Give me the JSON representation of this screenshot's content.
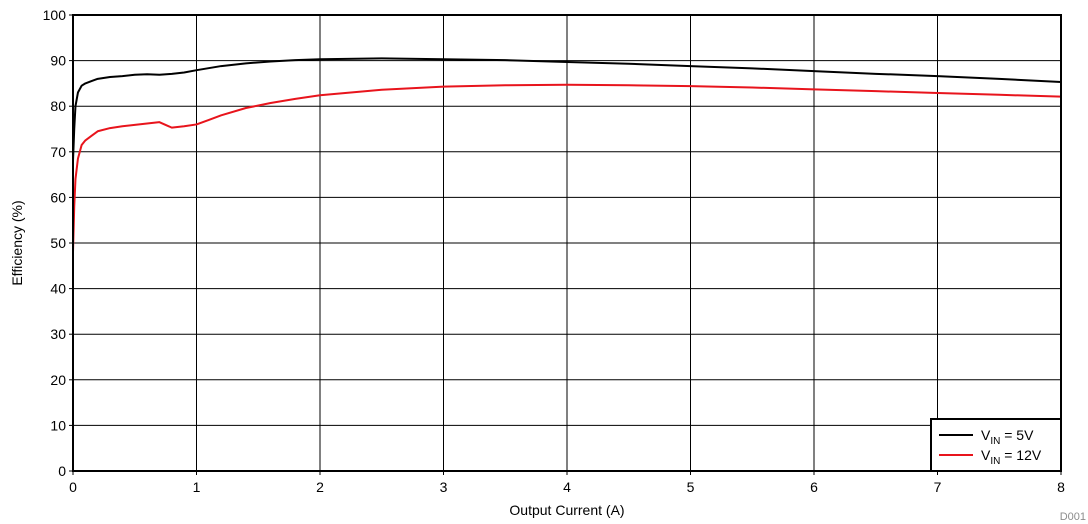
{
  "chart_data": {
    "type": "line",
    "xlabel": "Output Current (A)",
    "ylabel": "Efficiency (%)",
    "xlim": [
      0,
      8
    ],
    "ylim": [
      0,
      100
    ],
    "xticks": [
      "0",
      "1",
      "2",
      "3",
      "4",
      "5",
      "6",
      "7",
      "8"
    ],
    "yticks": [
      "0",
      "10",
      "20",
      "30",
      "40",
      "50",
      "60",
      "70",
      "80",
      "90",
      "100"
    ],
    "grid": true,
    "legend_position": "bottom-right",
    "footnote": "D001",
    "series": [
      {
        "name_main": "V",
        "name_sub": "IN",
        "name_rest": " = 5V",
        "color": "#000000",
        "points": [
          [
            0,
            68
          ],
          [
            0.01,
            75
          ],
          [
            0.02,
            80
          ],
          [
            0.04,
            83
          ],
          [
            0.07,
            84.5
          ],
          [
            0.1,
            85
          ],
          [
            0.15,
            85.5
          ],
          [
            0.2,
            86
          ],
          [
            0.3,
            86.4
          ],
          [
            0.4,
            86.6
          ],
          [
            0.5,
            86.9
          ],
          [
            0.6,
            87
          ],
          [
            0.7,
            86.9
          ],
          [
            0.8,
            87.1
          ],
          [
            0.9,
            87.4
          ],
          [
            1.0,
            87.9
          ],
          [
            1.2,
            88.8
          ],
          [
            1.4,
            89.4
          ],
          [
            1.6,
            89.8
          ],
          [
            1.8,
            90.1
          ],
          [
            2.0,
            90.3
          ],
          [
            2.5,
            90.5
          ],
          [
            3.0,
            90.3
          ],
          [
            3.5,
            90.1
          ],
          [
            4.0,
            89.7
          ],
          [
            4.5,
            89.3
          ],
          [
            5.0,
            88.8
          ],
          [
            5.5,
            88.3
          ],
          [
            6.0,
            87.7
          ],
          [
            6.5,
            87.1
          ],
          [
            7.0,
            86.6
          ],
          [
            7.5,
            86
          ],
          [
            8.0,
            85.3
          ]
        ]
      },
      {
        "name_main": "V",
        "name_sub": "IN",
        "name_rest": " = 12V",
        "color": "#e8141c",
        "points": [
          [
            0,
            48
          ],
          [
            0.01,
            58
          ],
          [
            0.02,
            64
          ],
          [
            0.04,
            68.5
          ],
          [
            0.07,
            71.5
          ],
          [
            0.1,
            72.5
          ],
          [
            0.15,
            73.5
          ],
          [
            0.2,
            74.5
          ],
          [
            0.3,
            75.2
          ],
          [
            0.4,
            75.6
          ],
          [
            0.5,
            75.9
          ],
          [
            0.6,
            76.2
          ],
          [
            0.7,
            76.5
          ],
          [
            0.75,
            75.9
          ],
          [
            0.8,
            75.3
          ],
          [
            0.9,
            75.6
          ],
          [
            1.0,
            76
          ],
          [
            1.1,
            77
          ],
          [
            1.2,
            78
          ],
          [
            1.4,
            79.6
          ],
          [
            1.6,
            80.7
          ],
          [
            1.8,
            81.6
          ],
          [
            2.0,
            82.4
          ],
          [
            2.5,
            83.6
          ],
          [
            3.0,
            84.3
          ],
          [
            3.5,
            84.6
          ],
          [
            4.0,
            84.7
          ],
          [
            4.5,
            84.6
          ],
          [
            5.0,
            84.4
          ],
          [
            5.5,
            84.1
          ],
          [
            6.0,
            83.7
          ],
          [
            6.5,
            83.3
          ],
          [
            7.0,
            82.9
          ],
          [
            7.5,
            82.5
          ],
          [
            8.0,
            82.1
          ]
        ]
      }
    ]
  }
}
